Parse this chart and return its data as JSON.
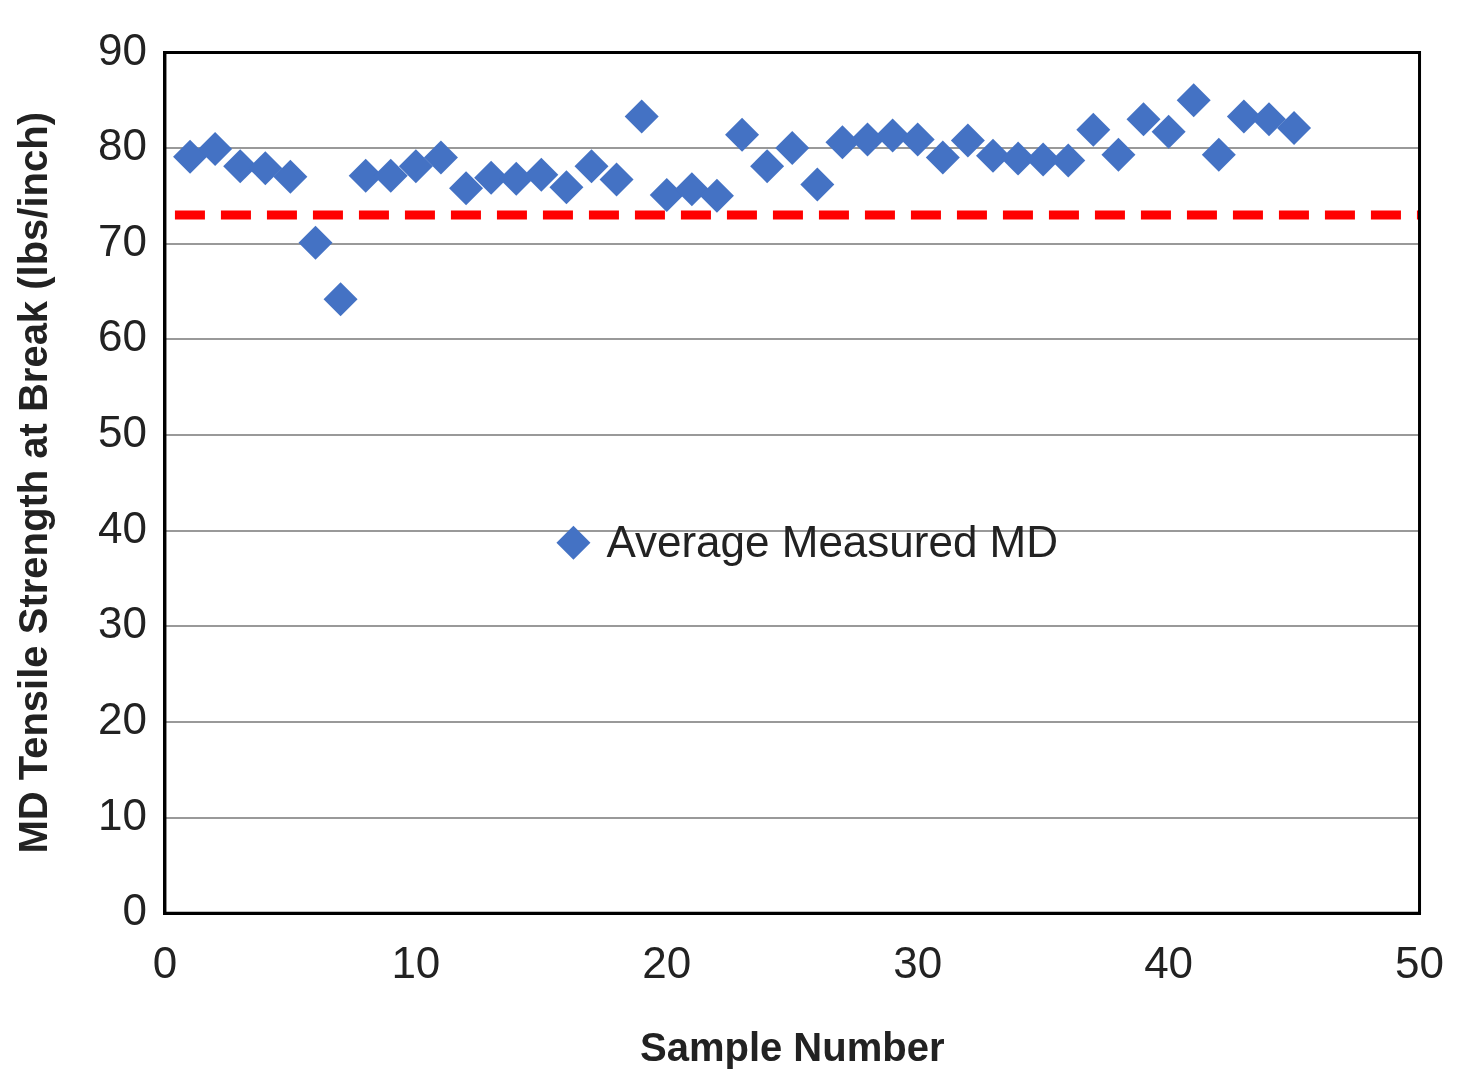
{
  "chart_data": {
    "type": "scatter",
    "xlabel": "Sample Number",
    "ylabel": "MD Tensile Strength at Break (lbs/inch)",
    "x": [
      1,
      2,
      3,
      4,
      5,
      6,
      7,
      8,
      9,
      10,
      11,
      12,
      13,
      14,
      15,
      16,
      17,
      18,
      19,
      20,
      21,
      22,
      23,
      24,
      25,
      26,
      27,
      28,
      29,
      30,
      31,
      32,
      33,
      34,
      35,
      36,
      37,
      38,
      39,
      40,
      41,
      42,
      43,
      44,
      45
    ],
    "series": [
      {
        "name": "Average Measured MD",
        "color": "#4472c4",
        "values": [
          79.1,
          79.9,
          78.1,
          77.9,
          77.0,
          70.1,
          64.2,
          77.1,
          77.1,
          78.1,
          79.0,
          75.8,
          76.9,
          76.8,
          77.2,
          75.9,
          78.1,
          76.7,
          83.3,
          75.1,
          75.7,
          75.0,
          81.4,
          78.1,
          80.0,
          76.2,
          80.6,
          80.9,
          81.3,
          80.9,
          79.0,
          80.8,
          79.2,
          78.9,
          78.8,
          78.7,
          81.9,
          79.3,
          83.0,
          81.7,
          85.0,
          79.3,
          83.3,
          83.0,
          82.1
        ]
      }
    ],
    "xlim": [
      0,
      50
    ],
    "xticks": [
      0,
      10,
      20,
      30,
      40,
      50
    ],
    "ylim": [
      0,
      90
    ],
    "yticks": [
      0,
      10,
      20,
      30,
      40,
      50,
      60,
      70,
      80,
      90
    ],
    "grid": "y",
    "legend": "center",
    "marker": "diamond",
    "ref_lines": [
      {
        "axis": "y",
        "value": 73,
        "color": "#ff0000",
        "line_style": "dashed"
      }
    ]
  }
}
